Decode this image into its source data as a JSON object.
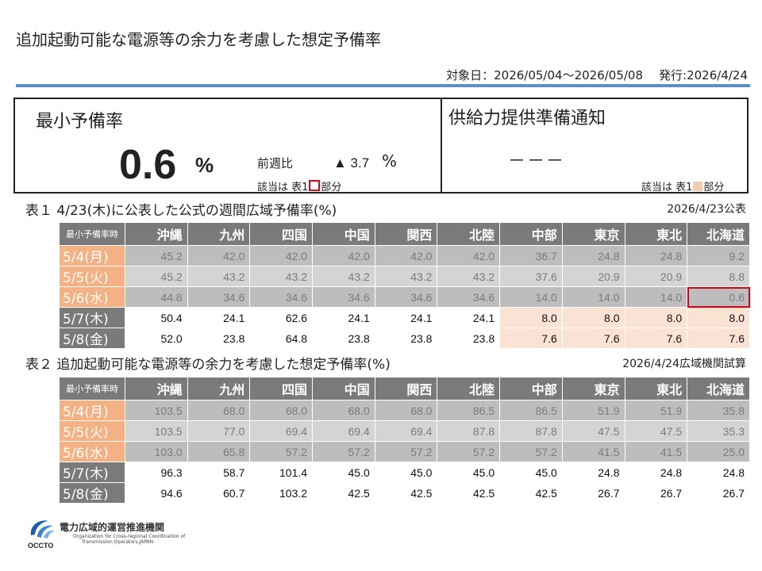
{
  "title": "追加起動可能な電源等の余力を考慮した想定予備率",
  "meta": {
    "target": "対象日：2026/05/04～2026/05/08",
    "issued": "発行:2026/4/24"
  },
  "summary": {
    "min_reserve_title": "最小予備率",
    "min_reserve_value": "0.6",
    "min_reserve_unit": "%",
    "wow_label": "前週比",
    "wow_value": "▲ 3.7",
    "wow_unit": "%",
    "note_prefix": "該当は 表1",
    "note_suffix": "部分",
    "notice_title": "供給力提供準備通知",
    "notice_value": "－－－",
    "notice_note_prefix": "該当は 表1",
    "notice_note_suffix": "部分"
  },
  "table1": {
    "caption": "表１ 4/23(木)に公表した公式の週間広域予備率(%)",
    "source": "2026/4/23公表",
    "corner": "最小予備率時",
    "areas": [
      "沖縄",
      "九州",
      "四国",
      "中国",
      "関西",
      "北陸",
      "中部",
      "東京",
      "東北",
      "北海道"
    ],
    "rows": [
      {
        "date": "5/4(月)",
        "values": [
          "45.2",
          "42.0",
          "42.0",
          "42.0",
          "42.0",
          "42.0",
          "36.7",
          "24.8",
          "24.8",
          "9.2"
        ]
      },
      {
        "date": "5/5(火)",
        "values": [
          "45.2",
          "43.2",
          "43.2",
          "43.2",
          "43.2",
          "43.2",
          "37.6",
          "20.9",
          "20.9",
          "8.8"
        ]
      },
      {
        "date": "5/6(水)",
        "values": [
          "44.8",
          "34.6",
          "34.6",
          "34.6",
          "34.6",
          "34.6",
          "14.0",
          "14.0",
          "14.0",
          "0.6"
        ]
      },
      {
        "date": "5/7(木)",
        "values": [
          "50.4",
          "24.1",
          "62.6",
          "24.1",
          "24.1",
          "24.1",
          "8.0",
          "8.0",
          "8.0",
          "8.0"
        ]
      },
      {
        "date": "5/8(金)",
        "values": [
          "52.0",
          "23.8",
          "64.8",
          "23.8",
          "23.8",
          "23.8",
          "7.6",
          "7.6",
          "7.6",
          "7.6"
        ]
      }
    ]
  },
  "table2": {
    "caption": "表２ 追加起動可能な電源等の余力を考慮した想定予備率(%)",
    "source": "2026/4/24広域機関試算",
    "corner": "最小予備率時",
    "areas": [
      "沖縄",
      "九州",
      "四国",
      "中国",
      "関西",
      "北陸",
      "中部",
      "東京",
      "東北",
      "北海道"
    ],
    "rows": [
      {
        "date": "5/4(月)",
        "values": [
          "103.5",
          "68.0",
          "68.0",
          "68.0",
          "68.0",
          "86.5",
          "86.5",
          "51.9",
          "51.9",
          "35.8"
        ]
      },
      {
        "date": "5/5(火)",
        "values": [
          "103.5",
          "77.0",
          "69.4",
          "69.4",
          "69.4",
          "87.8",
          "87.8",
          "47.5",
          "47.5",
          "35.3"
        ]
      },
      {
        "date": "5/6(水)",
        "values": [
          "103.0",
          "65.8",
          "57.2",
          "57.2",
          "57.2",
          "57.2",
          "57.2",
          "41.5",
          "41.5",
          "25.0"
        ]
      },
      {
        "date": "5/7(木)",
        "values": [
          "96.3",
          "58.7",
          "101.4",
          "45.0",
          "45.0",
          "45.0",
          "45.0",
          "24.8",
          "24.8",
          "24.8"
        ]
      },
      {
        "date": "5/8(金)",
        "values": [
          "94.6",
          "60.7",
          "103.2",
          "42.5",
          "42.5",
          "42.5",
          "42.5",
          "26.7",
          "26.7",
          "26.7"
        ]
      }
    ]
  },
  "footer": {
    "logo_text": "OCCTO",
    "org_ja": "電力広域的運営推進機関",
    "org_en_1": "Organization for Cross-regional Coordination of",
    "org_en_2": "Transmission Operators,JAPAN"
  },
  "colors": {
    "accent_rule": "#5b8fc9",
    "header_gray": "#7a7a7a",
    "past_date": "#f4b183",
    "highlight_pink": "#fbe3d4",
    "flag_red": "#d0021b"
  }
}
